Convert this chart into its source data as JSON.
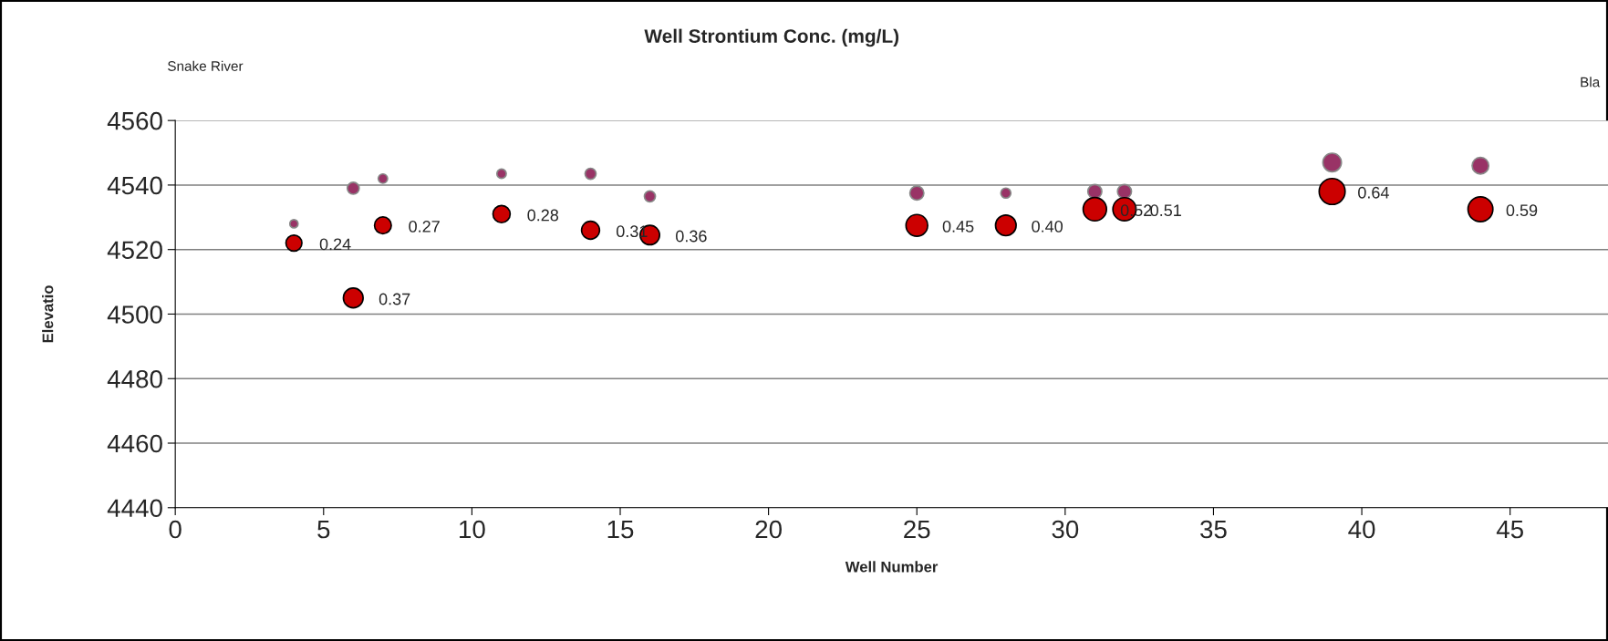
{
  "chart_data": {
    "type": "bubble",
    "title": "Well Strontium Conc. (mg/L)",
    "xlabel": "Well Number",
    "ylabel": "Elevatio",
    "annotations": [
      "Snake River",
      "Bla",
      {
        "text": "0.24",
        "x": 4,
        "y": 4522
      },
      {
        "text": "0.37",
        "x": 6,
        "y": 4505
      },
      {
        "text": "0.27",
        "x": 7,
        "y": 4527.5
      },
      {
        "text": "0.28",
        "x": 11,
        "y": 4531
      },
      {
        "text": "0.31",
        "x": 14,
        "y": 4526
      },
      {
        "text": "0.36",
        "x": 16,
        "y": 4524.5
      },
      {
        "text": "0.45",
        "x": 25,
        "y": 4527.5
      },
      {
        "text": "0.40",
        "x": 28,
        "y": 4527.5
      },
      {
        "text": "0.52",
        "x": 31,
        "y": 4532.5
      },
      {
        "text": "0.51",
        "x": 32,
        "y": 4532.5
      },
      {
        "text": "0.64",
        "x": 39,
        "y": 4538
      },
      {
        "text": "0.59",
        "x": 44,
        "y": 4532.5
      }
    ],
    "xlim": [
      0,
      48.3
    ],
    "xticks": [
      0,
      5,
      10,
      15,
      20,
      25,
      30,
      35,
      40,
      45
    ],
    "ylim": [
      4440,
      4560
    ],
    "yticks": [
      4440,
      4460,
      4480,
      4500,
      4520,
      4540,
      4560
    ],
    "grid": "y",
    "legend": false,
    "series": [
      {
        "color": "#993366",
        "x": [
          4,
          6,
          7,
          11,
          14,
          16,
          25,
          28,
          31,
          32,
          39,
          44
        ],
        "values": [
          4528,
          4539,
          4542,
          4543.5,
          4543.5,
          4536.5,
          4537.5,
          4537.5,
          4538,
          4538,
          4547,
          4546
        ],
        "sizes": [
          0.1,
          0.21,
          0.13,
          0.13,
          0.18,
          0.18,
          0.29,
          0.15,
          0.29,
          0.29,
          0.51,
          0.41
        ]
      },
      {
        "color": "#cc0000",
        "x": [
          4,
          6,
          7,
          11,
          14,
          16,
          25,
          28,
          31,
          32,
          39,
          44
        ],
        "values": [
          4522,
          4505,
          4527.5,
          4531,
          4526,
          4524.5,
          4527.5,
          4527.5,
          4532.5,
          4532.5,
          4538,
          4532.5
        ],
        "sizes": [
          0.38,
          0.58,
          0.42,
          0.44,
          0.48,
          0.56,
          0.7,
          0.63,
          0.81,
          0.8,
          1,
          0.92
        ]
      }
    ]
  }
}
